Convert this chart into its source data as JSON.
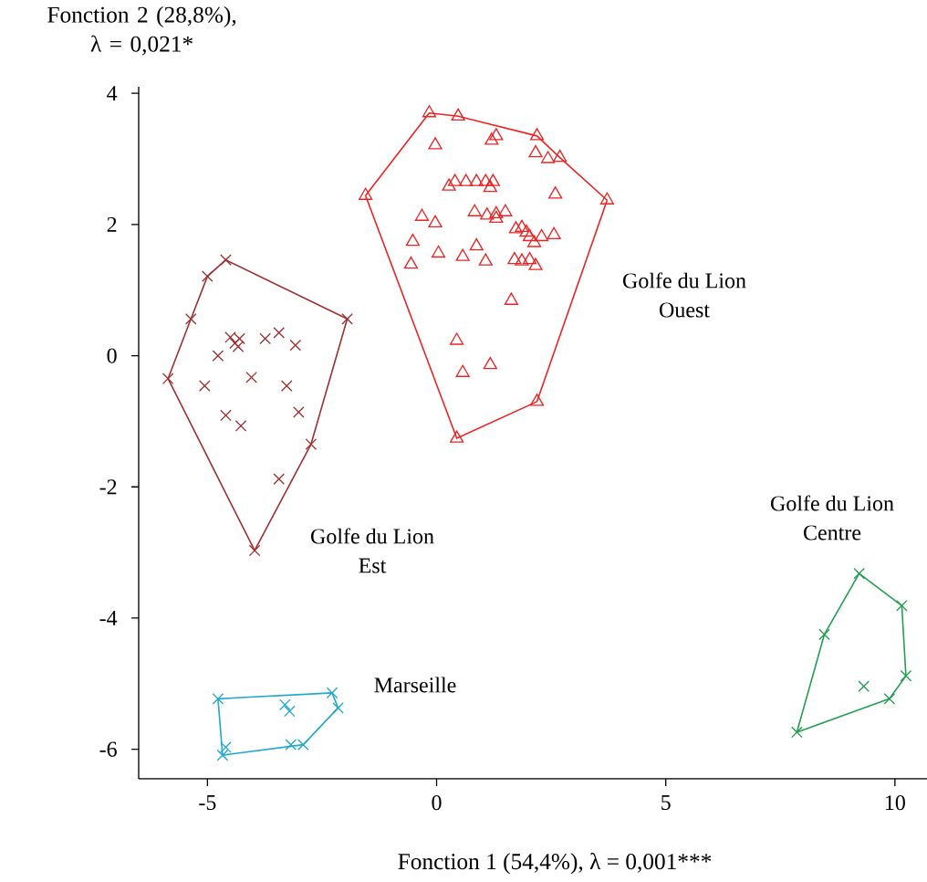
{
  "chart_data": {
    "type": "scatter",
    "xlabel": "Fonction 1 (54,4%), λ = 0,001***",
    "ylabel": "Fonction 2 (28,8%), λ = 0,021*",
    "xlim": [
      -6.5,
      10.7
    ],
    "ylim": [
      -6.45,
      4.1
    ],
    "xticks": [
      -5,
      0,
      5,
      10
    ],
    "yticks": [
      -6,
      -4,
      -2,
      0,
      2,
      4
    ],
    "grid": false,
    "series": [
      {
        "color": "#ee2222",
        "marker": "triangle",
        "x": [
          -0.16,
          0.47,
          -0.03,
          1.3,
          1.2,
          2.19,
          2.16,
          2.43,
          2.69,
          -1.55,
          3.72,
          2.59,
          0.27,
          0.4,
          0.64,
          0.87,
          1.07,
          1.23,
          1.17,
          -0.32,
          -0.03,
          0.83,
          1.1,
          1.3,
          1.5,
          1.3,
          1.73,
          1.86,
          1.96,
          2.03,
          2.29,
          2.56,
          2.13,
          -0.52,
          0.04,
          0.87,
          0.57,
          1.07,
          -0.56,
          1.7,
          1.86,
          2.03,
          2.16,
          1.63,
          0.44,
          1.17,
          0.57,
          2.19,
          0.44
        ],
        "values": [
          3.7,
          3.65,
          3.21,
          3.35,
          3.28,
          3.35,
          3.09,
          3.0,
          3.02,
          2.44,
          2.37,
          2.46,
          2.58,
          2.65,
          2.65,
          2.65,
          2.65,
          2.65,
          2.56,
          2.12,
          2.02,
          2.19,
          2.14,
          2.16,
          2.19,
          2.09,
          1.93,
          1.95,
          1.88,
          1.81,
          1.81,
          1.84,
          1.72,
          1.74,
          1.56,
          1.67,
          1.51,
          1.44,
          1.39,
          1.46,
          1.44,
          1.46,
          1.37,
          0.84,
          0.23,
          -0.14,
          -0.26,
          -0.7,
          -1.26
        ]
      },
      {
        "type": "line",
        "color": "#ee2222",
        "marker": "none",
        "x": [
          -1.55,
          -0.16,
          0.47,
          2.19,
          2.69,
          3.72
        ],
        "values": [
          2.44,
          3.7,
          3.65,
          3.35,
          3.02,
          2.37
        ]
      },
      {
        "type": "line",
        "color": "#ee2222",
        "marker": "none",
        "x": [
          -1.55,
          0.44,
          2.19,
          3.72
        ],
        "values": [
          2.44,
          -1.26,
          -0.7,
          2.37
        ]
      },
      {
        "color": "#a03030",
        "marker": "cross",
        "x": [
          -4.6,
          -5.0,
          -5.36,
          -1.95,
          -5.86,
          -4.5,
          -4.3,
          -4.4,
          -4.33,
          -4.77,
          -3.74,
          -3.44,
          -3.08,
          -4.04,
          -5.06,
          -3.27,
          -3.01,
          -4.6,
          -4.27,
          -2.74,
          -3.44,
          -3.97
        ],
        "values": [
          1.46,
          1.21,
          0.56,
          0.56,
          -0.35,
          0.28,
          0.26,
          0.19,
          0.14,
          0.0,
          0.26,
          0.35,
          0.16,
          -0.33,
          -0.46,
          -0.46,
          -0.86,
          -0.91,
          -1.07,
          -1.35,
          -1.88,
          -2.97
        ]
      },
      {
        "type": "line",
        "color": "#a03030",
        "marker": "none",
        "x": [
          -5.86,
          -5.36,
          -5.0,
          -4.6,
          -1.95
        ],
        "values": [
          -0.35,
          0.56,
          1.21,
          1.46,
          0.56
        ]
      },
      {
        "type": "line",
        "color": "#a03030",
        "marker": "none",
        "x": [
          -5.86,
          -3.97,
          -2.74,
          -1.95
        ],
        "values": [
          -0.35,
          -2.97,
          -1.35,
          0.56
        ]
      },
      {
        "color": "#20a8d0",
        "marker": "cross",
        "x": [
          -4.77,
          -2.28,
          -2.15,
          -3.31,
          -3.21,
          -4.6,
          -4.67,
          -3.18,
          -2.91
        ],
        "values": [
          -5.23,
          -5.14,
          -5.37,
          -5.32,
          -5.42,
          -5.97,
          -6.09,
          -5.93,
          -5.93
        ]
      },
      {
        "type": "line",
        "color": "#20a8d0",
        "marker": "none",
        "x": [
          -4.77,
          -2.28,
          -2.15
        ],
        "values": [
          -5.23,
          -5.14,
          -5.37
        ]
      },
      {
        "type": "line",
        "color": "#20a8d0",
        "marker": "none",
        "x": [
          -4.77,
          -4.67,
          -2.91,
          -2.15
        ],
        "values": [
          -5.23,
          -6.09,
          -5.93,
          -5.37
        ]
      },
      {
        "color": "#20a050",
        "marker": "cross",
        "x": [
          9.22,
          10.15,
          10.24,
          9.88,
          9.32,
          8.46,
          7.86
        ],
        "values": [
          -3.32,
          -3.81,
          -4.88,
          -5.23,
          -5.04,
          -4.25,
          -5.74
        ]
      },
      {
        "type": "line",
        "color": "#20a050",
        "marker": "none",
        "x": [
          7.86,
          8.46,
          9.22,
          10.15,
          10.24
        ],
        "values": [
          -5.74,
          -4.25,
          -3.32,
          -3.81,
          -4.88
        ]
      },
      {
        "type": "line",
        "color": "#20a050",
        "marker": "none",
        "x": [
          7.86,
          9.88,
          10.24
        ],
        "values": [
          -5.74,
          -5.23,
          -4.88
        ]
      }
    ],
    "annotations": [
      "Golfe du Lion Ouest",
      "Golfe du Lion Est",
      "Golfe du Lion Centre",
      "Marseille"
    ]
  }
}
